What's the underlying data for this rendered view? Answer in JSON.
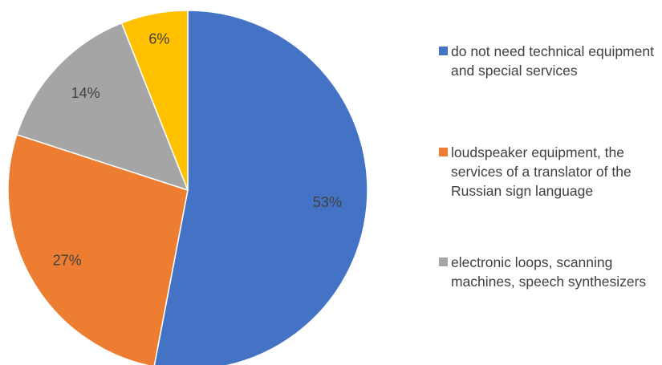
{
  "chart_data": {
    "type": "pie",
    "categories": [
      "do not need technical equipment and special services",
      "loudspeaker equipment, the services of a translator of the Russian sign language",
      "electronic loops, scanning machines, speech synthesizers",
      null
    ],
    "values": [
      53,
      27,
      14,
      6
    ],
    "value_labels": [
      "53%",
      "27%",
      "14%",
      "6%"
    ],
    "colors": [
      "#4472c4",
      "#ed7d31",
      "#a5a5a5",
      "#ffc000"
    ]
  }
}
